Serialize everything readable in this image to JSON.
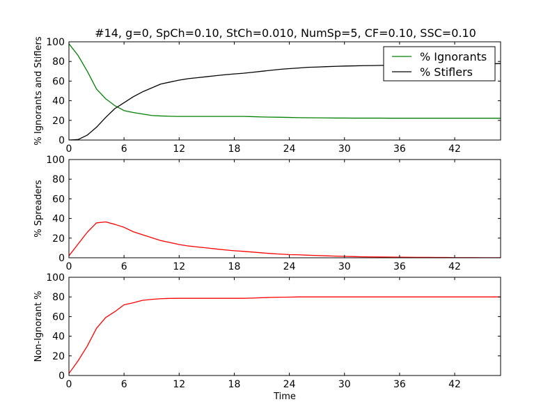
{
  "figure": {
    "title": "#14, g=0, SpCh=0.10, StCh=0.010, NumSp=5, CF=0.10, SSC=0.10",
    "xlabel": "Time"
  },
  "chart_data": [
    {
      "type": "line",
      "title": "#14, g=0, SpCh=0.10, StCh=0.010, NumSp=5, CF=0.10, SSC=0.10",
      "xlabel": "",
      "ylabel": "% Ignorants and Stiflers",
      "xlim": [
        0,
        47
      ],
      "ylim": [
        0,
        100
      ],
      "xticks": [
        0,
        6,
        12,
        18,
        24,
        30,
        36,
        42
      ],
      "yticks": [
        0,
        20,
        40,
        60,
        80,
        100
      ],
      "grid": false,
      "legend": "top-right",
      "series": [
        {
          "name": "% Ignorants",
          "color": "#008000",
          "x": [
            0,
            1,
            2,
            3,
            4,
            5,
            6,
            7,
            8,
            9,
            10,
            11,
            12,
            13,
            14,
            15,
            16,
            17,
            18,
            19,
            20,
            21,
            22,
            23,
            24,
            25,
            26,
            27,
            28,
            29,
            30,
            31,
            32,
            33,
            34,
            35,
            36,
            37,
            38,
            39,
            40,
            41,
            42,
            43,
            44,
            45,
            46,
            47
          ],
          "y": [
            98,
            86,
            70,
            52,
            42,
            35,
            30,
            28,
            26.5,
            25,
            24.5,
            24.2,
            24,
            24,
            24,
            24,
            24,
            24,
            24,
            24,
            23.8,
            23.5,
            23.3,
            23.2,
            23,
            22.8,
            22.7,
            22.6,
            22.5,
            22.4,
            22.4,
            22.3,
            22.3,
            22.3,
            22.3,
            22.2,
            22.2,
            22.2,
            22.2,
            22.2,
            22.2,
            22.2,
            22.2,
            22.2,
            22.2,
            22.2,
            22.2,
            22.2
          ]
        },
        {
          "name": "% Stiflers",
          "color": "#000000",
          "x": [
            0,
            1,
            2,
            3,
            4,
            5,
            6,
            7,
            8,
            9,
            10,
            11,
            12,
            13,
            14,
            15,
            16,
            17,
            18,
            19,
            20,
            21,
            22,
            23,
            24,
            25,
            26,
            27,
            28,
            29,
            30,
            31,
            32,
            33,
            34,
            35,
            36,
            37,
            38,
            39,
            40,
            41,
            42,
            43,
            44,
            45,
            46,
            47
          ],
          "y": [
            0,
            0.5,
            5,
            13,
            23,
            32,
            38,
            44,
            49,
            53,
            57,
            59,
            61,
            62.5,
            63.5,
            64.5,
            65.5,
            66.5,
            67.3,
            68,
            69,
            70,
            71,
            72,
            72.7,
            73.3,
            74,
            74.3,
            74.7,
            75,
            75.3,
            75.5,
            75.7,
            75.8,
            76,
            76.1,
            76.2,
            76.3,
            76.5,
            76.7,
            76.8,
            77,
            77.1,
            77.3,
            77.5,
            77.6,
            77.7,
            77.8
          ]
        }
      ]
    },
    {
      "type": "line",
      "title": "",
      "xlabel": "",
      "ylabel": "% Spreaders",
      "xlim": [
        0,
        47
      ],
      "ylim": [
        0,
        100
      ],
      "xticks": [
        0,
        6,
        12,
        18,
        24,
        30,
        36,
        42
      ],
      "yticks": [
        0,
        20,
        40,
        60,
        80,
        100
      ],
      "grid": false,
      "series": [
        {
          "color": "#ff0000",
          "x": [
            0,
            1,
            2,
            3,
            4,
            5,
            6,
            7,
            8,
            9,
            10,
            11,
            12,
            13,
            14,
            15,
            16,
            17,
            18,
            19,
            20,
            21,
            22,
            23,
            24,
            25,
            26,
            27,
            28,
            29,
            30,
            31,
            32,
            33,
            34,
            35,
            36,
            37,
            38,
            39,
            40,
            41,
            42,
            43,
            44,
            45,
            46,
            47
          ],
          "y": [
            2,
            14,
            26,
            35.5,
            36.5,
            34,
            31,
            26.5,
            23.5,
            20.5,
            17.5,
            15.5,
            13.5,
            12,
            11,
            10,
            9,
            8,
            7.2,
            6.5,
            5.8,
            5,
            4.3,
            3.7,
            3.2,
            3,
            2.6,
            2.3,
            2,
            1.7,
            1.4,
            1.2,
            1,
            0.9,
            0.8,
            0.7,
            0.6,
            0.5,
            0.4,
            0.4,
            0.3,
            0.3,
            0.2,
            0.2,
            0.2,
            0.1,
            0.1,
            0.1
          ]
        }
      ]
    },
    {
      "type": "line",
      "title": "",
      "xlabel": "Time",
      "ylabel": "Non-Ignorant %",
      "xlim": [
        0,
        47
      ],
      "ylim": [
        0,
        100
      ],
      "xticks": [
        0,
        6,
        12,
        18,
        24,
        30,
        36,
        42
      ],
      "yticks": [
        0,
        20,
        40,
        60,
        80,
        100
      ],
      "grid": false,
      "series": [
        {
          "color": "#ff0000",
          "x": [
            0,
            1,
            2,
            3,
            4,
            5,
            6,
            7,
            8,
            9,
            10,
            11,
            12,
            13,
            14,
            15,
            16,
            17,
            18,
            19,
            20,
            21,
            22,
            23,
            24,
            25,
            26,
            27,
            28,
            29,
            30,
            31,
            32,
            33,
            34,
            35,
            36,
            37,
            38,
            39,
            40,
            41,
            42,
            43,
            44,
            45,
            46,
            47
          ],
          "y": [
            2,
            15,
            30,
            48,
            59,
            65,
            72,
            74,
            76.5,
            77.5,
            78.2,
            78.5,
            78.6,
            78.6,
            78.6,
            78.6,
            78.6,
            78.6,
            78.6,
            78.6,
            78.8,
            79.2,
            79.5,
            79.7,
            79.8,
            80,
            80,
            80,
            80,
            80,
            80,
            80,
            80,
            80,
            80,
            80,
            80,
            80,
            80,
            80,
            80,
            80,
            80,
            80,
            80,
            80,
            80,
            80
          ]
        }
      ]
    }
  ]
}
